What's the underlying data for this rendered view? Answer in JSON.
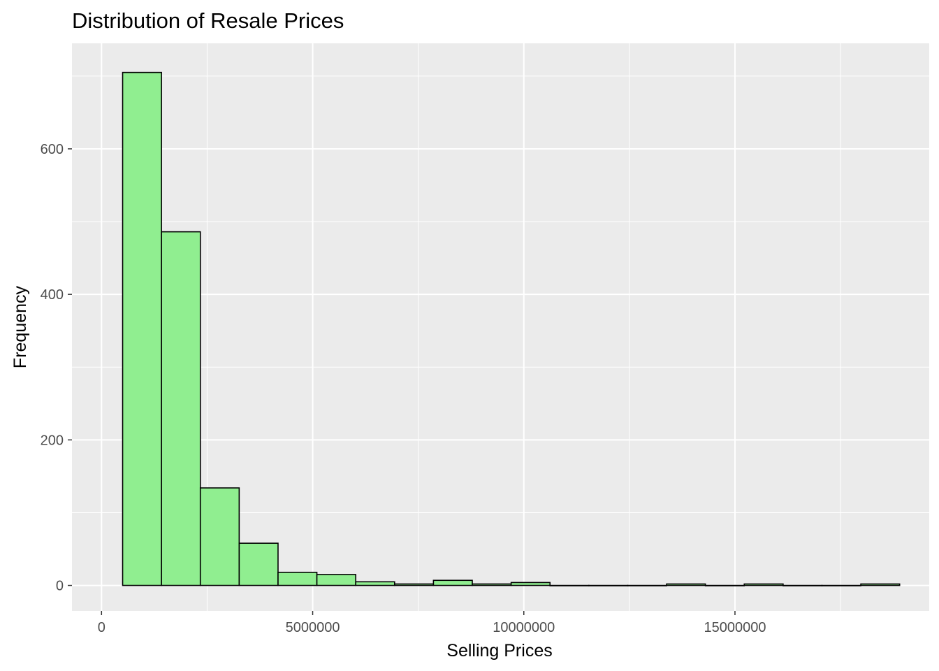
{
  "chart_data": {
    "type": "bar",
    "title": "Distribution of Resale Prices",
    "xlabel": "Selling Prices",
    "ylabel": "Frequency",
    "xlim": [
      -700000,
      19600000
    ],
    "ylim": [
      -35,
      745
    ],
    "x_ticks": [
      0,
      5000000,
      10000000,
      15000000
    ],
    "x_tick_labels": [
      "0",
      "5000000",
      "10000000",
      "15000000"
    ],
    "y_ticks": [
      0,
      200,
      400,
      600
    ],
    "y_tick_labels": [
      "0",
      "200",
      "400",
      "600"
    ],
    "grid": true,
    "bin_width": 920000,
    "bins": [
      {
        "x0": 500000,
        "x1": 1420000,
        "count": 705
      },
      {
        "x0": 1420000,
        "x1": 2340000,
        "count": 486
      },
      {
        "x0": 2340000,
        "x1": 3260000,
        "count": 134
      },
      {
        "x0": 3260000,
        "x1": 4180000,
        "count": 58
      },
      {
        "x0": 4180000,
        "x1": 5100000,
        "count": 18
      },
      {
        "x0": 5100000,
        "x1": 6020000,
        "count": 15
      },
      {
        "x0": 6020000,
        "x1": 6940000,
        "count": 5
      },
      {
        "x0": 6940000,
        "x1": 7860000,
        "count": 2
      },
      {
        "x0": 7860000,
        "x1": 8780000,
        "count": 7
      },
      {
        "x0": 8780000,
        "x1": 9700000,
        "count": 2
      },
      {
        "x0": 9700000,
        "x1": 10620000,
        "count": 4
      },
      {
        "x0": 10620000,
        "x1": 11540000,
        "count": 0
      },
      {
        "x0": 11540000,
        "x1": 12460000,
        "count": 0
      },
      {
        "x0": 12460000,
        "x1": 13380000,
        "count": 0
      },
      {
        "x0": 13380000,
        "x1": 14300000,
        "count": 2
      },
      {
        "x0": 14300000,
        "x1": 15220000,
        "count": 0
      },
      {
        "x0": 15220000,
        "x1": 16140000,
        "count": 2
      },
      {
        "x0": 16140000,
        "x1": 17060000,
        "count": 0
      },
      {
        "x0": 17060000,
        "x1": 17980000,
        "count": 0
      },
      {
        "x0": 17980000,
        "x1": 18900000,
        "count": 2
      }
    ],
    "colors": {
      "bar_fill": "#90EE90",
      "bar_stroke": "#000000",
      "panel_bg": "#EBEBEB",
      "grid": "#FFFFFF",
      "tick_text": "#4D4D4D"
    }
  }
}
